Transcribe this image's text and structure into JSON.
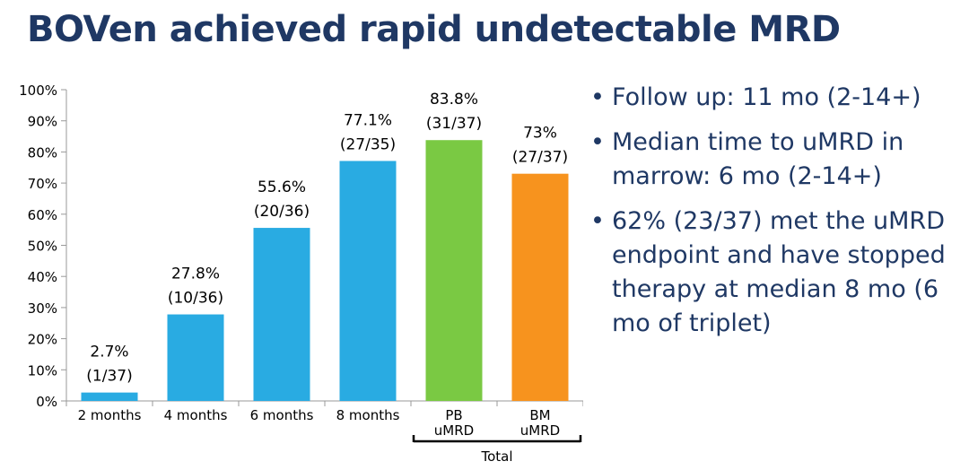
{
  "title": "BOVen achieved rapid undetectable MRD",
  "bullets": [
    "Follow up: 11 mo (2-14+)",
    "Median time to uMRD in marrow: 6 mo (2-14+)",
    "62% (23/37) met the uMRD endpoint and have stopped therapy at median 8 mo (6 mo of triplet)"
  ],
  "chart_data": {
    "type": "bar",
    "categories": [
      "2 months",
      "4 months",
      "6 months",
      "8 months",
      "PB uMRD",
      "BM uMRD"
    ],
    "category_lines": [
      [
        "2 months"
      ],
      [
        "4 months"
      ],
      [
        "6 months"
      ],
      [
        "8 months"
      ],
      [
        "PB",
        "uMRD"
      ],
      [
        "BM",
        "uMRD"
      ]
    ],
    "values": [
      2.7,
      27.8,
      55.6,
      77.1,
      83.8,
      73
    ],
    "value_labels": [
      "2.7%",
      "27.8%",
      "55.6%",
      "77.1%",
      "83.8%",
      "73%"
    ],
    "count_labels": [
      "(1/37)",
      "(10/36)",
      "(20/36)",
      "(27/35)",
      "(31/37)",
      "(27/37)"
    ],
    "colors": [
      "#29abe2",
      "#29abe2",
      "#29abe2",
      "#29abe2",
      "#7ac943",
      "#f7931e"
    ],
    "y_ticks": [
      "0%",
      "10%",
      "20%",
      "30%",
      "40%",
      "50%",
      "60%",
      "70%",
      "80%",
      "90%",
      "100%"
    ],
    "ylim": [
      0,
      100
    ],
    "group_label": "Total",
    "grid": false,
    "legend": "none"
  }
}
